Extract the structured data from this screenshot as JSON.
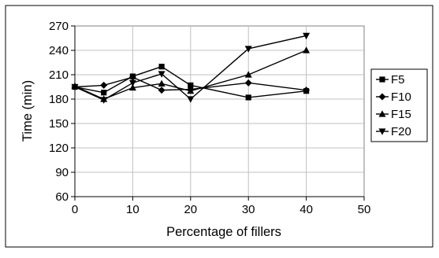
{
  "chart_data": {
    "type": "line",
    "title": "",
    "xlabel": "Percentage of fillers",
    "ylabel": "Time (min)",
    "xlim": [
      0,
      50
    ],
    "ylim": [
      60,
      270
    ],
    "x_ticks": [
      0,
      10,
      20,
      30,
      40,
      50
    ],
    "y_ticks": [
      60,
      90,
      120,
      150,
      180,
      210,
      240,
      270
    ],
    "grid": true,
    "legend_position": "right",
    "x": [
      0,
      5,
      10,
      15,
      20,
      30,
      40
    ],
    "series": [
      {
        "name": "F5",
        "marker": "square",
        "values": [
          195,
          188,
          208,
          220,
          197,
          182,
          190
        ]
      },
      {
        "name": "F10",
        "marker": "diamond",
        "values": [
          195,
          197,
          207,
          191,
          192,
          200,
          191
        ]
      },
      {
        "name": "F15",
        "marker": "triangle",
        "values": [
          196,
          180,
          194,
          199,
          190,
          210,
          240
        ]
      },
      {
        "name": "F20",
        "marker": "inverted-triangle",
        "values": [
          195,
          179,
          200,
          211,
          180,
          242,
          258
        ]
      }
    ]
  }
}
